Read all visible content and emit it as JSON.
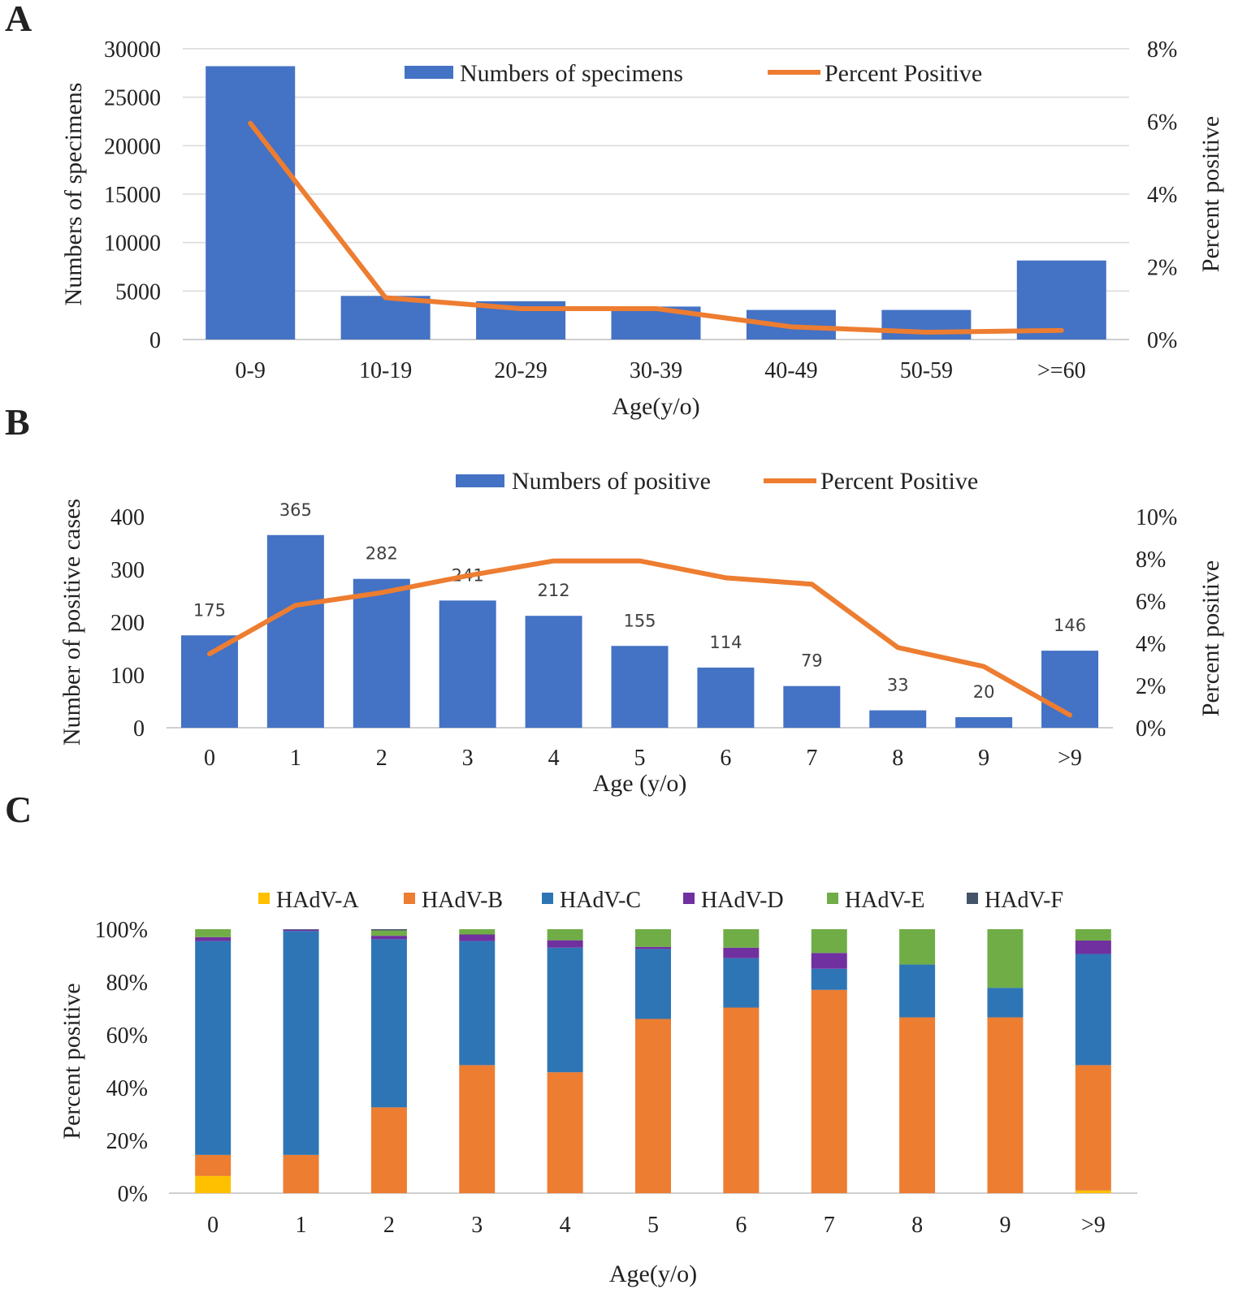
{
  "panels": {
    "a": {
      "label": "A"
    },
    "b": {
      "label": "B"
    },
    "c": {
      "label": "C"
    }
  },
  "colors": {
    "bar_blue": "#4472C4",
    "line_orange": "#ED7D31",
    "grid": "#D9D9D9",
    "axis": "#BFBFBF",
    "text": "#222222",
    "hadv_a": "#FFC000",
    "hadv_b": "#ED7D31",
    "hadv_c": "#2E75B6",
    "hadv_d": "#7030A0",
    "hadv_e": "#70AD47",
    "hadv_f": "#44546A"
  },
  "chart_data": [
    {
      "id": "a",
      "type": "bar",
      "categories": [
        "0-9",
        "10-19",
        "20-29",
        "30-39",
        "40-49",
        "50-59",
        ">=60"
      ],
      "series": [
        {
          "name": "Numbers of specimens",
          "type": "bar",
          "axis": "left",
          "values": [
            28200,
            4500,
            3950,
            3400,
            3050,
            3050,
            8150
          ]
        },
        {
          "name": "Percent Positive",
          "type": "line",
          "axis": "right",
          "values": [
            5.95,
            1.15,
            0.85,
            0.85,
            0.35,
            0.2,
            0.25
          ]
        }
      ],
      "xlabel": "Age(y/o)",
      "ylabel": "Numbers of specimens",
      "y2label": "Percent positive",
      "ylim": [
        0,
        30000
      ],
      "yticks": [
        0,
        5000,
        10000,
        15000,
        20000,
        25000,
        30000
      ],
      "ytick_labels": [
        "0",
        "5000",
        "10000",
        "15000",
        "20000",
        "25000",
        "30000"
      ],
      "y2lim": [
        0,
        8
      ],
      "y2ticks": [
        0,
        2,
        4,
        6,
        8
      ],
      "y2tick_labels": [
        "0%",
        "2%",
        "4%",
        "6%",
        "8%"
      ],
      "grid": true,
      "legend": "top-center"
    },
    {
      "id": "b",
      "type": "bar",
      "categories": [
        "0",
        "1",
        "2",
        "3",
        "4",
        "5",
        "6",
        "7",
        "8",
        "9",
        ">9"
      ],
      "series": [
        {
          "name": "Numbers of positive",
          "type": "bar",
          "axis": "left",
          "values": [
            175,
            365,
            282,
            241,
            212,
            155,
            114,
            79,
            33,
            20,
            146
          ],
          "labels": [
            "175",
            "365",
            "282",
            "241",
            "212",
            "155",
            "114",
            "79",
            "33",
            "20",
            "146"
          ]
        },
        {
          "name": "Percent Positive",
          "type": "line",
          "axis": "right",
          "values": [
            3.5,
            5.8,
            6.4,
            7.2,
            7.9,
            7.9,
            7.1,
            6.8,
            3.8,
            2.9,
            0.6
          ]
        }
      ],
      "xlabel": "Age (y/o)",
      "ylabel": "Number of positive cases",
      "y2label": "Percent positive",
      "ylim": [
        0,
        400
      ],
      "yticks": [
        0,
        100,
        200,
        300,
        400
      ],
      "ytick_labels": [
        "0",
        "100",
        "200",
        "300",
        "400"
      ],
      "y2lim": [
        0,
        10
      ],
      "y2ticks": [
        0,
        2,
        4,
        6,
        8,
        10
      ],
      "y2tick_labels": [
        "0%",
        "2%",
        "4%",
        "6%",
        "8%",
        "10%"
      ],
      "grid": false,
      "legend": "top-center"
    },
    {
      "id": "c",
      "type": "bar",
      "stacked": true,
      "categories": [
        "0",
        "1",
        "2",
        "3",
        "4",
        "5",
        "6",
        "7",
        "8",
        "9",
        ">9"
      ],
      "series": [
        {
          "name": "HAdV-A",
          "values": [
            6.5,
            0,
            0,
            0,
            0,
            0,
            0,
            0,
            0,
            0,
            1.0
          ]
        },
        {
          "name": "HAdV-B",
          "values": [
            8.0,
            14.5,
            32.5,
            48.5,
            45.8,
            66.0,
            70.3,
            77.0,
            66.6,
            66.6,
            47.5
          ]
        },
        {
          "name": "HAdV-C",
          "values": [
            81.0,
            84.8,
            63.7,
            47.0,
            47.2,
            26.5,
            18.7,
            8.0,
            20.0,
            11.2,
            42.1
          ]
        },
        {
          "name": "HAdV-D",
          "values": [
            1.5,
            0.5,
            1.3,
            2.5,
            2.8,
            0.8,
            4.0,
            6.0,
            0,
            0,
            5.1
          ]
        },
        {
          "name": "HAdV-E",
          "values": [
            3.0,
            0,
            2.0,
            2.0,
            4.2,
            6.7,
            7.0,
            9.0,
            13.4,
            22.2,
            4.3
          ]
        },
        {
          "name": "HAdV-F",
          "values": [
            0,
            0.2,
            0.5,
            0,
            0,
            0,
            0,
            0,
            0,
            0,
            0
          ]
        }
      ],
      "xlabel": "Age(y/o)",
      "ylabel": "Percent positive",
      "ylim": [
        0,
        100
      ],
      "yticks": [
        0,
        20,
        40,
        60,
        80,
        100
      ],
      "ytick_labels": [
        "0%",
        "20%",
        "40%",
        "60%",
        "80%",
        "100%"
      ],
      "grid": false,
      "legend": "top-center"
    }
  ]
}
